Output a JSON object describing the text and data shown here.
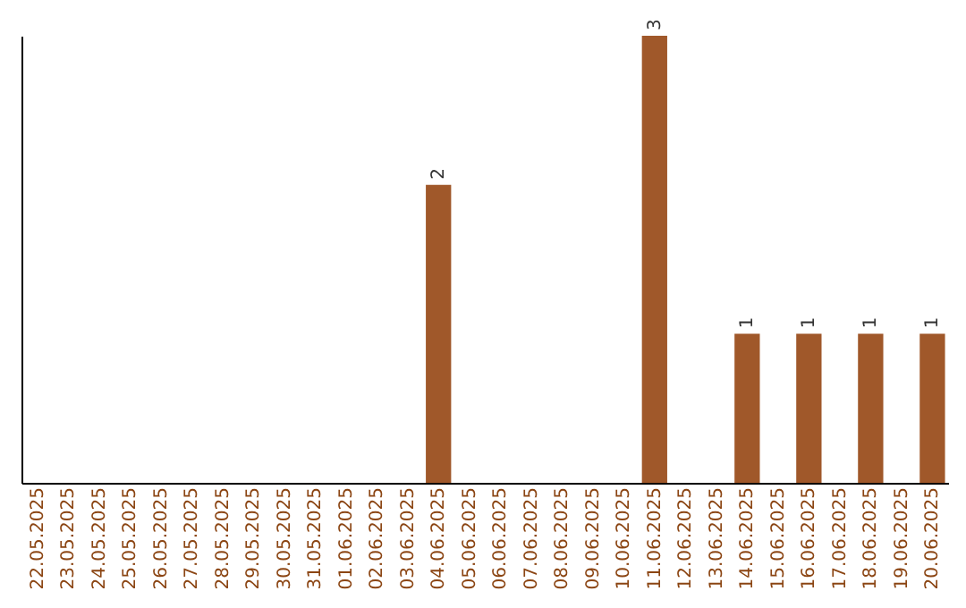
{
  "chart_data": {
    "type": "bar",
    "categories": [
      "22.05.2025",
      "23.05.2025",
      "24.05.2025",
      "25.05.2025",
      "26.05.2025",
      "27.05.2025",
      "28.05.2025",
      "29.05.2025",
      "30.05.2025",
      "31.05.2025",
      "01.06.2025",
      "02.06.2025",
      "03.06.2025",
      "04.06.2025",
      "05.06.2025",
      "06.06.2025",
      "07.06.2025",
      "08.06.2025",
      "09.06.2025",
      "10.06.2025",
      "11.06.2025",
      "12.06.2025",
      "13.06.2025",
      "14.06.2025",
      "15.06.2025",
      "16.06.2025",
      "17.06.2025",
      "18.06.2025",
      "19.06.2025",
      "20.06.2025"
    ],
    "values": [
      null,
      null,
      null,
      null,
      null,
      null,
      null,
      null,
      null,
      null,
      null,
      null,
      null,
      2,
      null,
      null,
      null,
      null,
      null,
      null,
      3,
      null,
      null,
      1,
      null,
      1,
      null,
      1,
      null,
      1
    ],
    "value_labels": [
      null,
      null,
      null,
      null,
      null,
      null,
      null,
      null,
      null,
      null,
      null,
      null,
      null,
      "2",
      null,
      null,
      null,
      null,
      null,
      null,
      "3",
      null,
      null,
      "1",
      null,
      "1",
      null,
      "1",
      null,
      "1"
    ],
    "color": "#a0582a",
    "tick_labels": "x"
  }
}
